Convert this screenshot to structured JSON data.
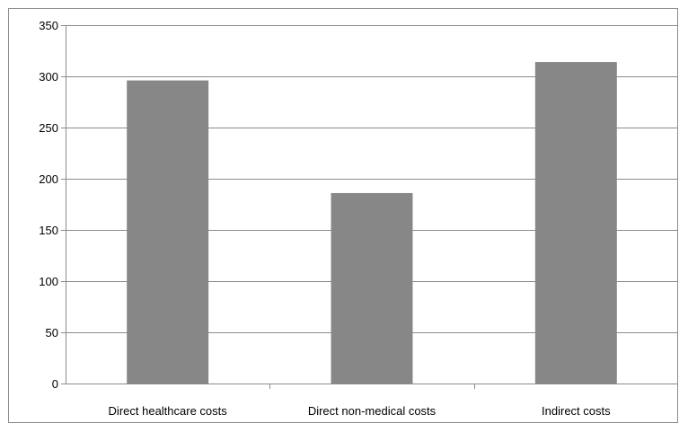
{
  "chart_data": {
    "type": "bar",
    "categories": [
      "Direct healthcare costs",
      "Direct non-medical costs",
      "Indirect costs"
    ],
    "values": [
      296,
      186,
      314
    ],
    "ylim": [
      0,
      350
    ],
    "yticks": [
      0,
      50,
      100,
      150,
      200,
      250,
      300,
      350
    ],
    "grid": true,
    "legend": "none",
    "colors": {
      "bar": "#878787",
      "grid": "#8c8c8c",
      "axis": "#8c8c8c"
    }
  }
}
